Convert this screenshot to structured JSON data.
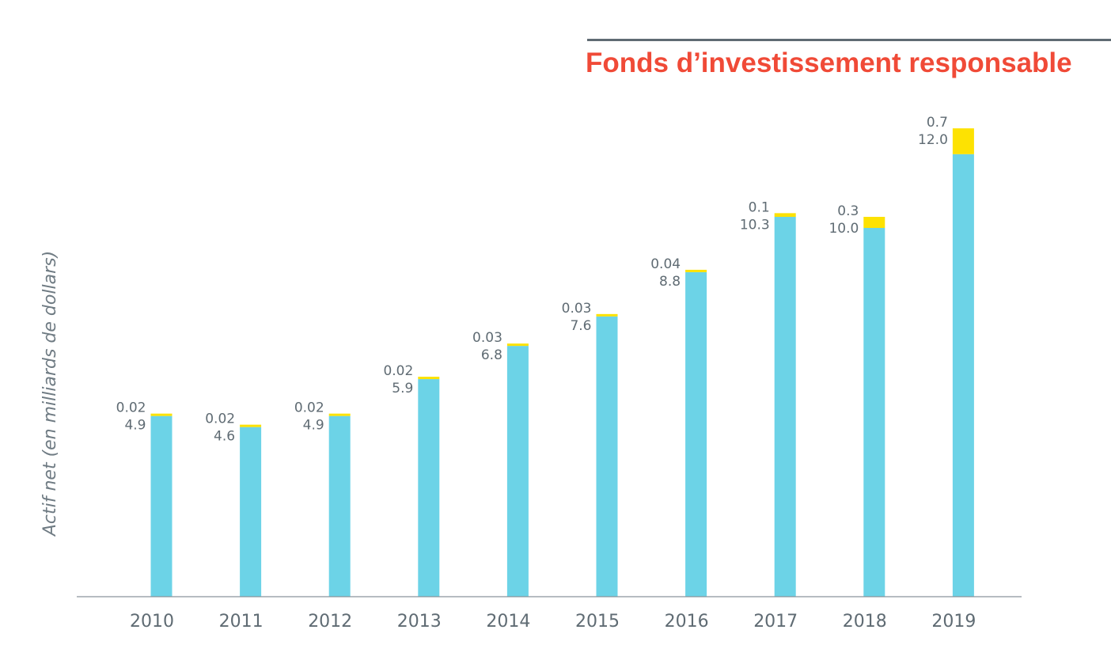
{
  "header": {
    "title": "Fonds d’investissement responsable"
  },
  "chart_data": {
    "type": "bar",
    "stacked": true,
    "title": "Fonds d’investissement responsable",
    "xlabel": "",
    "ylabel": "Actif net (en milliards de dollars)",
    "ylim": [
      0,
      15
    ],
    "grid": false,
    "categories": [
      "2010",
      "2011",
      "2012",
      "2013",
      "2014",
      "2015",
      "2016",
      "2017",
      "2018",
      "2019"
    ],
    "series": [
      {
        "color": "#6cd3e7",
        "values": [
          4.9,
          4.6,
          4.9,
          5.9,
          6.8,
          7.6,
          8.8,
          10.3,
          10.0,
          12.0
        ],
        "labels": [
          "4.9",
          "4.6",
          "4.9",
          "5.9",
          "6.8",
          "7.6",
          "8.8",
          "10.3",
          "10.0",
          "12.0"
        ]
      },
      {
        "color": "#fde202",
        "values": [
          0.02,
          0.02,
          0.02,
          0.02,
          0.03,
          0.03,
          0.04,
          0.1,
          0.3,
          0.7
        ],
        "labels": [
          "0.02",
          "0.02",
          "0.02",
          "0.02",
          "0.03",
          "0.03",
          "0.04",
          "0.1",
          "0.3",
          "0.7"
        ]
      }
    ]
  }
}
